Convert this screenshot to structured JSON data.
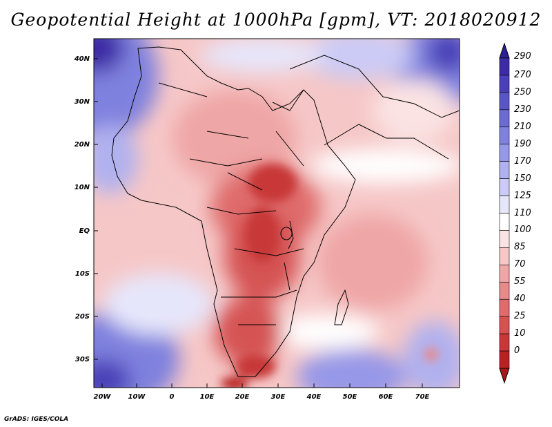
{
  "title": "Geopotential Height at 1000hPa [gpm], VT: 2018020912",
  "lat_labels": [
    "40N",
    "30N",
    "20N",
    "10N",
    "EQ",
    "10S",
    "20S",
    "30S"
  ],
  "lon_labels": [
    "20W",
    "10W",
    "0",
    "10E",
    "20E",
    "30E",
    "40E",
    "50E",
    "60E",
    "70E"
  ],
  "colorbar": {
    "levels": [
      "290",
      "270",
      "250",
      "230",
      "210",
      "190",
      "170",
      "150",
      "125",
      "110",
      "100",
      "85",
      "70",
      "55",
      "40",
      "25",
      "10",
      "0"
    ],
    "colors": [
      "#3c2ba6",
      "#4a3fb7",
      "#5a55c6",
      "#6b6bd3",
      "#7f81de",
      "#9798e8",
      "#b0b1ef",
      "#cbcbf6",
      "#e6e6fb",
      "#ffffff",
      "#fbe3e3",
      "#f6c7c7",
      "#efa6a6",
      "#e88a8a",
      "#df6c6c",
      "#d55252",
      "#c83838",
      "#b82222"
    ]
  },
  "colors": {
    "land_hot": "#c83838",
    "ocean_cool": "#7f81de",
    "neutral": "#ffffff"
  },
  "credit": "GrADS: IGES/COLA"
}
